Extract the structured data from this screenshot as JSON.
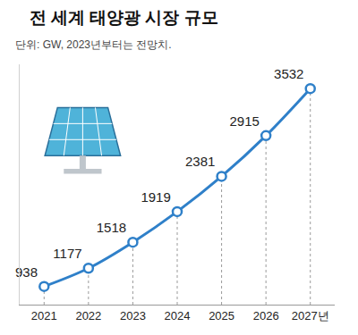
{
  "chart_data": {
    "type": "line",
    "title": "전 세계 태양광 시장 규모",
    "subtitle": "단위: GW, 2023년부터는 전망치.",
    "categories": [
      "2021",
      "2022",
      "2023",
      "2024",
      "2025",
      "2026",
      "2027년"
    ],
    "values": [
      938,
      1177,
      1518,
      1919,
      2381,
      2915,
      3532
    ],
    "color": "#2f80c9",
    "marker": "circle",
    "line_style": "solid",
    "ylim": [
      700,
      3850
    ],
    "grid": false,
    "data_labels": true,
    "tick_labels": "x"
  }
}
